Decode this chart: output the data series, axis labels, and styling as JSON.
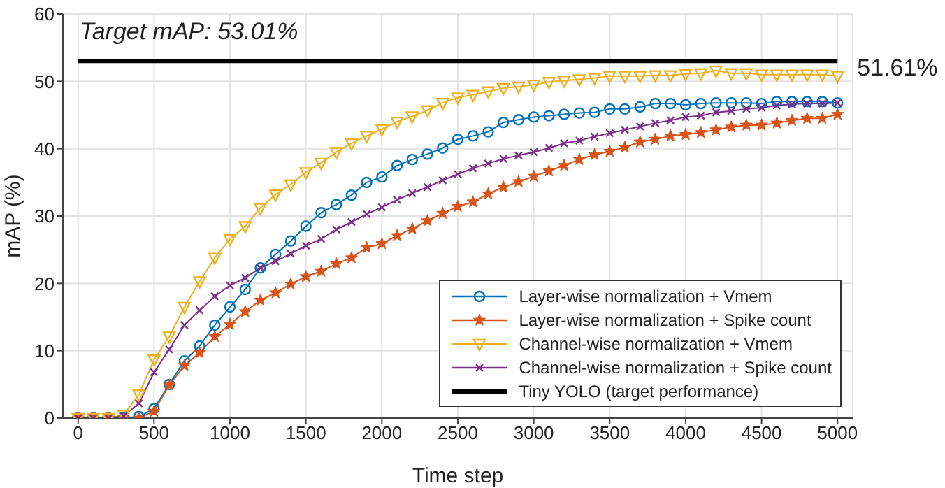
{
  "chart_data": {
    "type": "line",
    "xlabel": "Time step",
    "ylabel": "mAP (%)",
    "x": [
      0,
      100,
      200,
      300,
      400,
      500,
      600,
      700,
      800,
      900,
      1000,
      1100,
      1200,
      1300,
      1400,
      1500,
      1600,
      1700,
      1800,
      1900,
      2000,
      2100,
      2200,
      2300,
      2400,
      2500,
      2600,
      2700,
      2800,
      2900,
      3000,
      3100,
      3200,
      3300,
      3400,
      3500,
      3600,
      3700,
      3800,
      3900,
      4000,
      4100,
      4200,
      4300,
      4400,
      4500,
      4600,
      4700,
      4800,
      4900,
      5000
    ],
    "series": [
      {
        "name": "Layer-wise normalization + Vmem",
        "color": "#0072bd",
        "marker": "circle",
        "values": [
          0,
          0,
          0,
          0,
          0.2,
          1.4,
          5.0,
          8.5,
          10.7,
          13.8,
          16.5,
          19.1,
          22.3,
          24.3,
          26.3,
          28.5,
          30.5,
          31.7,
          33.1,
          35.0,
          35.8,
          37.5,
          38.4,
          39.2,
          40.1,
          41.4,
          41.9,
          42.5,
          43.9,
          44.3,
          44.7,
          44.9,
          45.1,
          45.3,
          45.4,
          45.9,
          45.9,
          46.2,
          46.7,
          46.7,
          46.5,
          46.7,
          46.8,
          46.8,
          46.8,
          46.7,
          47.0,
          47.0,
          47.0,
          47.0,
          46.8
        ]
      },
      {
        "name": "Layer-wise normalization + Spike count",
        "color": "#d95319",
        "marker": "star",
        "values": [
          0,
          0,
          0,
          0,
          0,
          1.0,
          4.9,
          7.8,
          9.7,
          12.1,
          13.9,
          15.8,
          17.5,
          18.6,
          19.9,
          21.0,
          21.8,
          22.9,
          23.8,
          25.3,
          25.9,
          27.1,
          28.1,
          29.3,
          30.4,
          31.4,
          32.1,
          33.3,
          34.3,
          35.1,
          35.9,
          36.7,
          37.5,
          38.4,
          39.1,
          39.6,
          40.2,
          41.0,
          41.4,
          41.9,
          42.1,
          42.4,
          42.8,
          43.2,
          43.5,
          43.5,
          43.8,
          44.2,
          44.5,
          44.5,
          45.1
        ]
      },
      {
        "name": "Channel-wise normalization + Vmem",
        "color": "#edb120",
        "marker": "triangle",
        "values": [
          0,
          0,
          0,
          0.5,
          3.5,
          8.7,
          12.1,
          16.5,
          20.3,
          23.8,
          26.6,
          28.5,
          31.2,
          33.2,
          34.7,
          36.5,
          37.9,
          39.5,
          40.8,
          41.9,
          42.9,
          44.0,
          44.8,
          45.7,
          46.8,
          47.6,
          48.0,
          48.5,
          49.0,
          49.2,
          49.5,
          49.9,
          50.1,
          50.3,
          50.5,
          50.8,
          50.8,
          50.8,
          50.9,
          50.9,
          51.1,
          51.2,
          51.6,
          51.2,
          51.2,
          51.0,
          51.0,
          51.0,
          51.0,
          51.0,
          50.8
        ]
      },
      {
        "name": "Channel-wise normalization + Spike count",
        "color": "#7e2f8e",
        "marker": "cross",
        "values": [
          0,
          0,
          0,
          0.3,
          2.2,
          6.8,
          10.2,
          13.8,
          16.0,
          18.1,
          19.7,
          20.8,
          22.3,
          23.3,
          24.4,
          25.6,
          26.6,
          28.0,
          29.1,
          30.3,
          31.3,
          32.4,
          33.4,
          34.3,
          35.3,
          36.2,
          37.1,
          37.8,
          38.5,
          39.0,
          39.5,
          40.1,
          40.8,
          41.2,
          41.8,
          42.3,
          42.8,
          43.3,
          43.8,
          44.2,
          44.7,
          44.9,
          45.4,
          45.6,
          45.9,
          46.1,
          46.4,
          46.6,
          46.7,
          46.7,
          46.8
        ]
      },
      {
        "name": "Tiny YOLO (target performance)",
        "color": "#000000",
        "marker": "none",
        "x": [
          0,
          5000
        ],
        "values": [
          53.01,
          53.01
        ]
      }
    ],
    "annotations": [
      "Target mAP: 53.01%",
      {
        "text": "51.61%",
        "x": 5000,
        "y": 51.61
      }
    ],
    "xlim": [
      -100,
      5100
    ],
    "xticks": [
      0,
      500,
      1000,
      1500,
      2000,
      2500,
      3000,
      3500,
      4000,
      4500,
      5000
    ],
    "ylim": [
      0,
      60
    ],
    "yticks": [
      0,
      10,
      20,
      30,
      40,
      50,
      60
    ],
    "grid": true,
    "legend": "bottom right"
  }
}
